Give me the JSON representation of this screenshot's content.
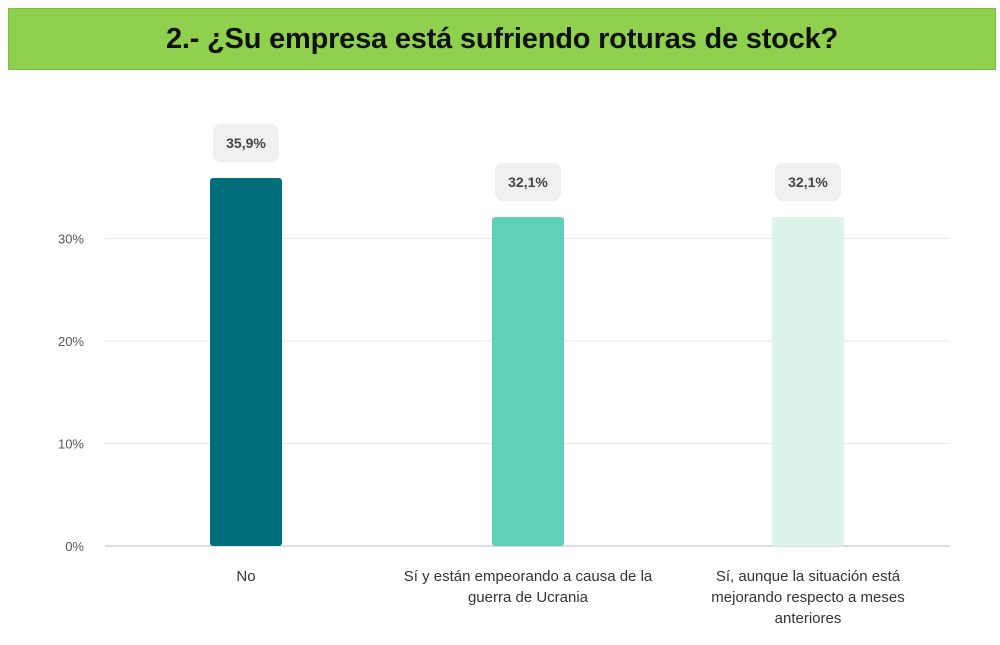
{
  "title": "2.- ¿Su empresa está sufriendo roturas de stock?",
  "chart_data": {
    "type": "bar",
    "title": "2.- ¿Su empresa está sufriendo roturas de stock?",
    "xlabel": "",
    "ylabel": "",
    "categories": [
      "No",
      "Sí y están empeorando a causa de la guerra de Ucrania",
      "Sí, aunque la situación está mejorando respecto a meses anteriores"
    ],
    "category_lines": [
      [
        "No"
      ],
      [
        "Sí y están empeorando a causa de la",
        "guerra de Ucrania"
      ],
      [
        "Sí, aunque la situación está",
        "mejorando respecto a meses",
        "anteriores"
      ]
    ],
    "values": [
      35.9,
      32.1,
      32.1
    ],
    "data_labels": [
      "35,9%",
      "32,1%",
      "32,1%"
    ],
    "bar_colors": [
      "#006f7a",
      "#5fd1b8",
      "#dcf3ea"
    ],
    "ylim": [
      0,
      40
    ],
    "yticks": [
      0,
      10,
      20,
      30
    ],
    "ytick_labels": [
      "0%",
      "10%",
      "20%",
      "30%"
    ],
    "grid": true,
    "legend": "none"
  }
}
